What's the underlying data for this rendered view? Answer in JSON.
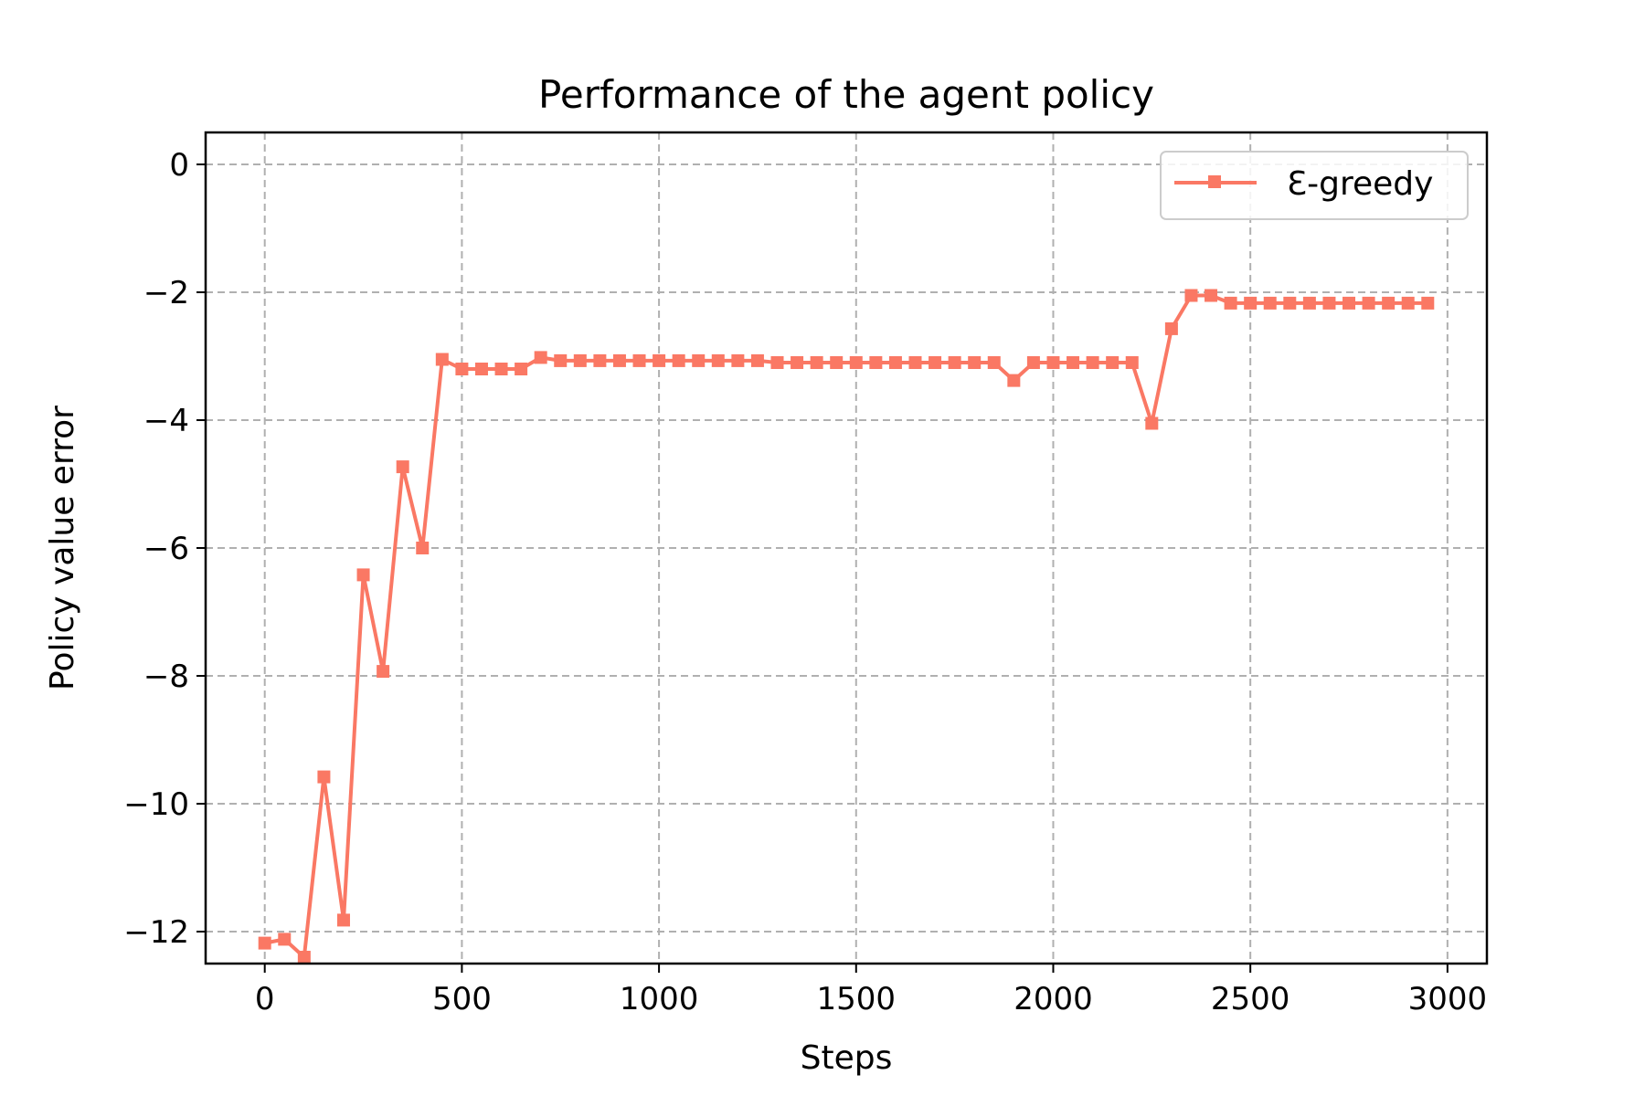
{
  "chart_data": {
    "type": "line",
    "title": "Performance of the agent policy",
    "xlabel": "Steps",
    "ylabel": "Policy value error",
    "xlim": [
      -150,
      3100
    ],
    "ylim": [
      -12.5,
      0.5
    ],
    "xticks": [
      0,
      500,
      1000,
      1500,
      2000,
      2500,
      3000
    ],
    "xtick_labels": [
      "0",
      "500",
      "1000",
      "1500",
      "2000",
      "2500",
      "3000"
    ],
    "yticks": [
      0,
      -2,
      -4,
      -6,
      -8,
      -10,
      -12
    ],
    "ytick_labels": [
      "0",
      "−2",
      "−4",
      "−6",
      "−8",
      "−10",
      "−12"
    ],
    "grid": true,
    "legend_position": "top-right",
    "series": [
      {
        "name": "Ɛ-greedy",
        "color": "#fa7864",
        "marker": "square",
        "x": [
          0,
          50,
          100,
          150,
          200,
          250,
          300,
          350,
          400,
          450,
          500,
          550,
          600,
          650,
          700,
          750,
          800,
          850,
          900,
          950,
          1000,
          1050,
          1100,
          1150,
          1200,
          1250,
          1300,
          1350,
          1400,
          1450,
          1500,
          1550,
          1600,
          1650,
          1700,
          1750,
          1800,
          1850,
          1900,
          1950,
          2000,
          2050,
          2100,
          2150,
          2200,
          2250,
          2300,
          2350,
          2400,
          2450,
          2500,
          2550,
          2600,
          2650,
          2700,
          2750,
          2800,
          2850,
          2900,
          2950
        ],
        "y": [
          -12.18,
          -12.12,
          -12.4,
          -9.58,
          -11.82,
          -6.42,
          -7.93,
          -4.73,
          -6.0,
          -3.05,
          -3.2,
          -3.2,
          -3.2,
          -3.2,
          -3.02,
          -3.07,
          -3.07,
          -3.07,
          -3.07,
          -3.07,
          -3.07,
          -3.07,
          -3.07,
          -3.07,
          -3.07,
          -3.07,
          -3.1,
          -3.1,
          -3.1,
          -3.1,
          -3.1,
          -3.1,
          -3.1,
          -3.1,
          -3.1,
          -3.1,
          -3.1,
          -3.1,
          -3.38,
          -3.1,
          -3.1,
          -3.1,
          -3.1,
          -3.1,
          -3.1,
          -4.05,
          -2.57,
          -2.05,
          -2.05,
          -2.17,
          -2.17,
          -2.17,
          -2.17,
          -2.17,
          -2.17,
          -2.17,
          -2.17,
          -2.17,
          -2.17,
          -2.17
        ]
      }
    ]
  }
}
